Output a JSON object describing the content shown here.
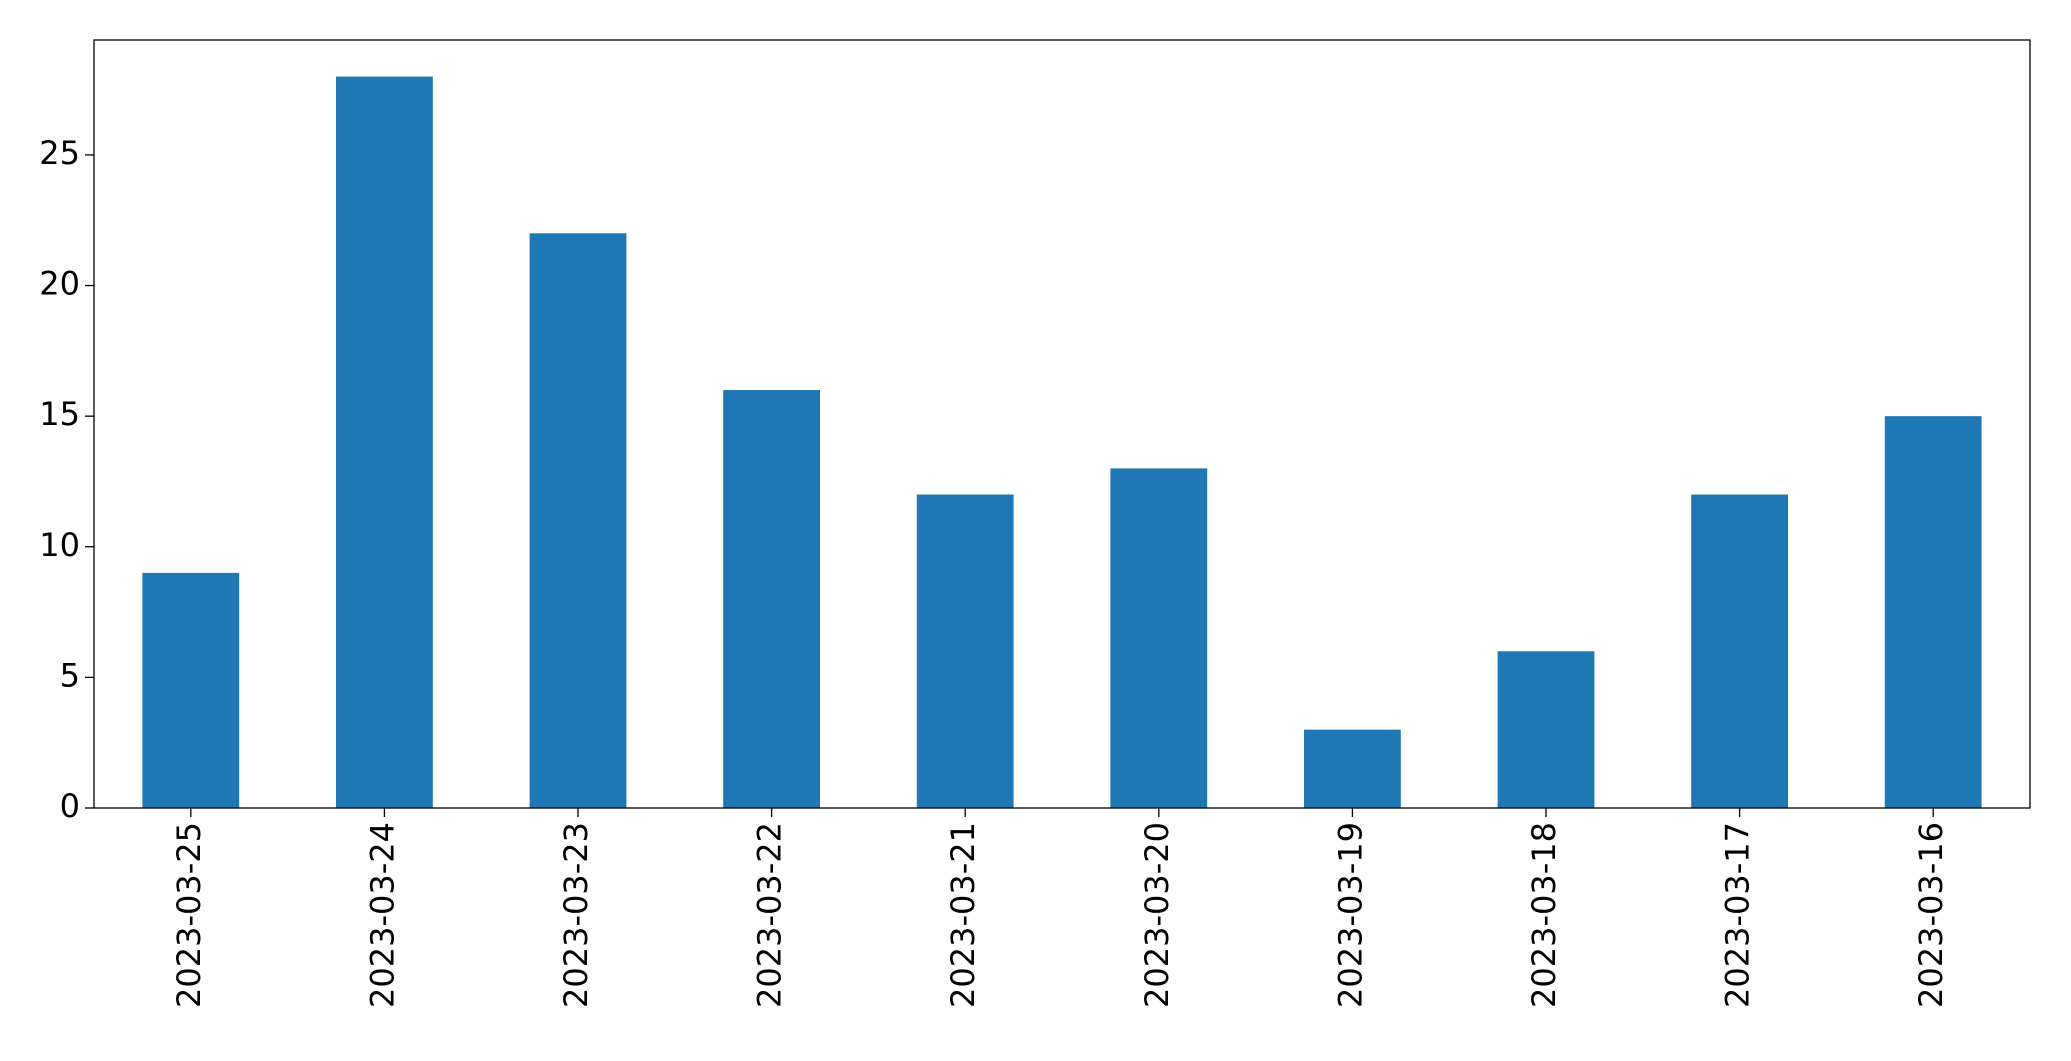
{
  "chart_data": {
    "type": "bar",
    "categories": [
      "2023-03-25",
      "2023-03-24",
      "2023-03-23",
      "2023-03-22",
      "2023-03-21",
      "2023-03-20",
      "2023-03-19",
      "2023-03-18",
      "2023-03-17",
      "2023-03-16"
    ],
    "values": [
      9,
      28,
      22,
      16,
      12,
      13,
      3,
      6,
      12,
      15
    ],
    "color": "#1f77b4",
    "ylim": [
      0,
      29.4
    ],
    "yticks": [
      0,
      5,
      10,
      15,
      20,
      25
    ],
    "grid": false
  }
}
